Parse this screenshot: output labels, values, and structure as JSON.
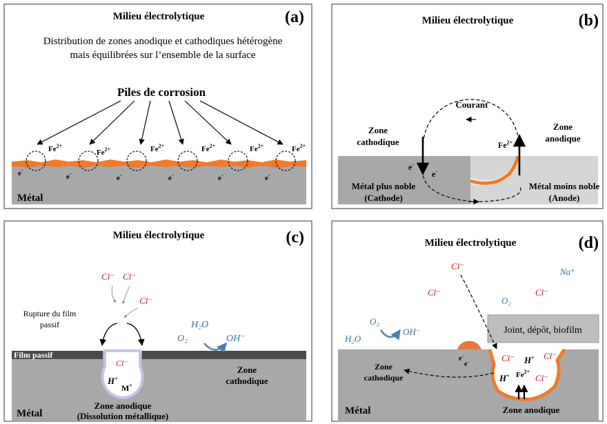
{
  "colors": {
    "metal": "#a8a8a8",
    "metal_light": "#d6d6d6",
    "rust": "#f07a2a",
    "film": "#4a4a4a",
    "chloride": "#d11a1a",
    "species": "#3f6fa8",
    "arrow_blue": "#4d7fae"
  },
  "panel_a": {
    "letter": "(a)",
    "medium": "Milieu électrolytique",
    "description_line1": "Distribution de zones anodique et cathodiques hétérogène",
    "description_line2": "mais équilibrées sur l’ensemble de la surface",
    "piles_label": "Piles de corrosion",
    "ion_base": "Fe",
    "ion_charge": "2+",
    "electron": "e",
    "electron_sup": "-",
    "metal_label": "Métal"
  },
  "panel_b": {
    "letter": "(b)",
    "medium": "Milieu électrolytique",
    "current_label": "Courant",
    "cathode_zone_line1": "Zone",
    "cathode_zone_line2": "cathodique",
    "anode_zone_line1": "Zone",
    "anode_zone_line2": "anodique",
    "ion_base": "Fe",
    "ion_charge": "2+",
    "electron": "e",
    "electron_sup": "-",
    "noble_metal_line1": "Métal plus noble",
    "noble_metal_line2": "(Cathode)",
    "less_noble_line1": "Métal moins noble",
    "less_noble_line2": "(Anode)"
  },
  "panel_c": {
    "letter": "(c)",
    "medium": "Milieu électrolytique",
    "chloride": "Cl⁻",
    "rupture_line1": "Rupture du film",
    "rupture_line2": "passif",
    "water": "H₂O",
    "oxygen": "O₂",
    "hydroxide": "OH⁻",
    "film_label": "Film passif",
    "cathode_line1": "Zone",
    "cathode_line2": "cathodique",
    "proton_base": "H",
    "proton_sup": "+",
    "metal_ion_base": "M",
    "metal_ion_sup": "+",
    "anode_line1": "Zone anodique",
    "anode_line2": "(Dissolution métallique)",
    "metal_label": "Métal"
  },
  "panel_d": {
    "letter": "(d)",
    "medium": "Milieu électrolytique",
    "chloride": "Cl⁻",
    "sodium": "Na⁺",
    "oxygen": "O₂",
    "water": "H₂O",
    "hydroxide": "OH⁻",
    "joint_label": "Joint, dépôt, biofilm",
    "cathode_line1": "Zone",
    "cathode_line2": "cathodique",
    "electron": "e",
    "electron_sup": "-",
    "proton_base": "H",
    "proton_sup": "+",
    "ion_base": "Fe",
    "ion_charge": "2+",
    "anode_label": "Zone anodique",
    "metal_label": "Métal"
  }
}
